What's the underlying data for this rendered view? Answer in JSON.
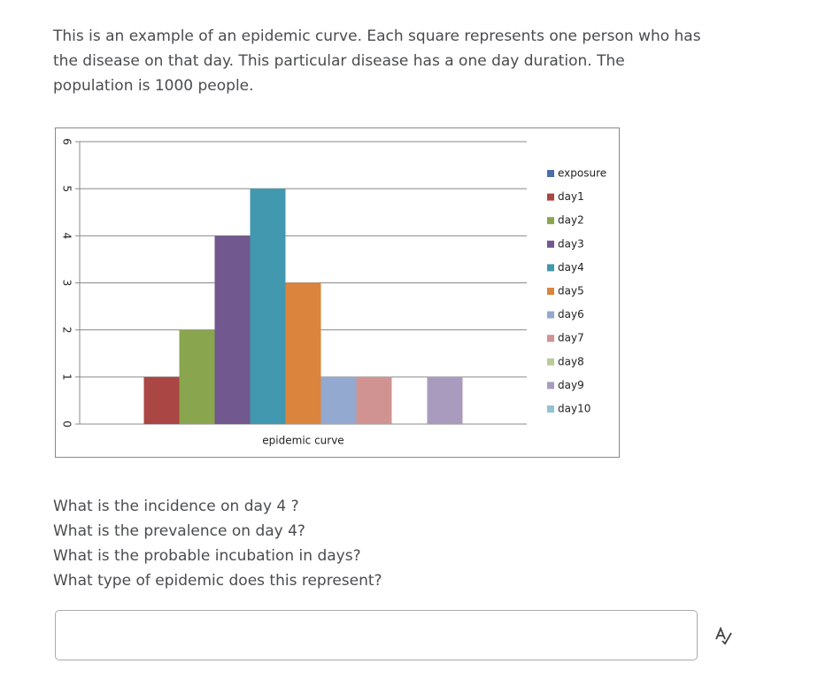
{
  "intro": [
    "This is an example of an epidemic curve. Each square represents one person who has",
    "the disease on that day. This particular disease has a one day duration. The",
    "population is 1000 people."
  ],
  "chart_data": {
    "type": "bar",
    "categories": [
      "epidemic curve"
    ],
    "series": [
      {
        "name": "exposure",
        "color": "#4a6fa8",
        "values": [
          0
        ]
      },
      {
        "name": "day1",
        "color": "#aa4643",
        "values": [
          1
        ]
      },
      {
        "name": "day2",
        "color": "#89a54e",
        "values": [
          2
        ]
      },
      {
        "name": "day3",
        "color": "#71588f",
        "values": [
          4
        ]
      },
      {
        "name": "day4",
        "color": "#4198af",
        "values": [
          5
        ]
      },
      {
        "name": "day5",
        "color": "#db843d",
        "values": [
          3
        ]
      },
      {
        "name": "day6",
        "color": "#93a9cf",
        "values": [
          1
        ]
      },
      {
        "name": "day7",
        "color": "#d19392",
        "values": [
          1
        ]
      },
      {
        "name": "day8",
        "color": "#b9cd96",
        "values": [
          0
        ]
      },
      {
        "name": "day9",
        "color": "#a99bbd",
        "values": [
          1
        ]
      },
      {
        "name": "day10",
        "color": "#91c3d5",
        "values": [
          0
        ]
      }
    ],
    "ylim": [
      0,
      6
    ],
    "yticks": [
      0,
      1,
      2,
      3,
      4,
      5,
      6
    ],
    "grid": true,
    "legend": "right"
  },
  "questions": [
    "What is the incidence on day 4 ?",
    "What is the prevalence on day 4?",
    "What is the probable incubation in days?",
    "What type of epidemic does this represent?"
  ]
}
